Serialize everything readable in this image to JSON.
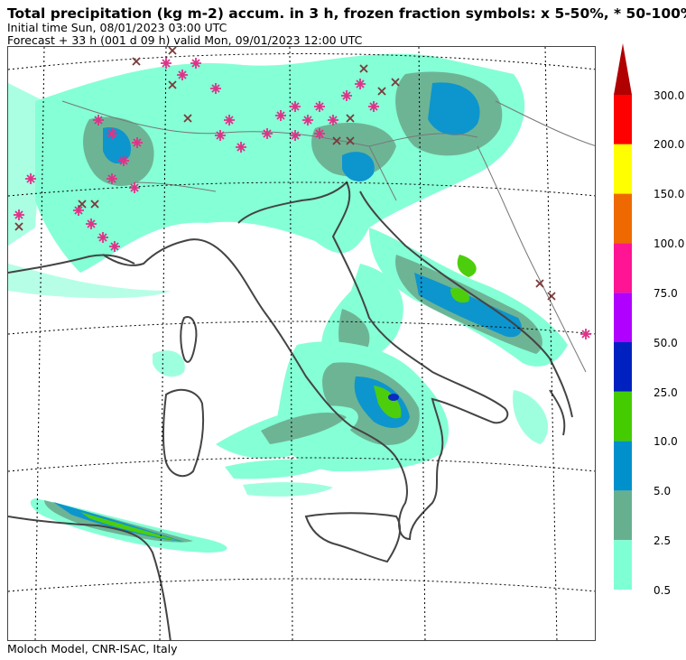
{
  "header": {
    "title": "Total precipitation (kg m-2) accum. in 3 h, frozen fraction symbols: x 5-50%, * 50-100%",
    "initial_time": "Initial time  Sun, 08/01/2023  03:00 UTC",
    "forecast": "Forecast  +  33 h  (001 d 09 h)  valid Mon, 09/01/2023 12:00 UTC"
  },
  "footer": {
    "credit": "Moloch Model, CNR-ISAC, Italy"
  },
  "legend": {
    "labels": [
      "300.0",
      "200.0",
      "150.0",
      "100.0",
      "75.0",
      "50.0",
      "25.0",
      "10.0",
      "5.0",
      "2.5",
      "0.5"
    ],
    "colors_top_to_bottom": [
      "#ff0000",
      "#ffff00",
      "#ee6a00",
      "#ff1493",
      "#b000ff",
      "#0020c0",
      "#44cc00",
      "#0090cc",
      "#66b090",
      "#7fffd4"
    ],
    "arrow_color": "#b00000"
  },
  "map": {
    "colors": {
      "coast": "#444444",
      "border": "#777777",
      "grid": "#000000",
      "snow_symbol": "#dd3388",
      "mixed_symbol": "#7a3a3a"
    }
  }
}
